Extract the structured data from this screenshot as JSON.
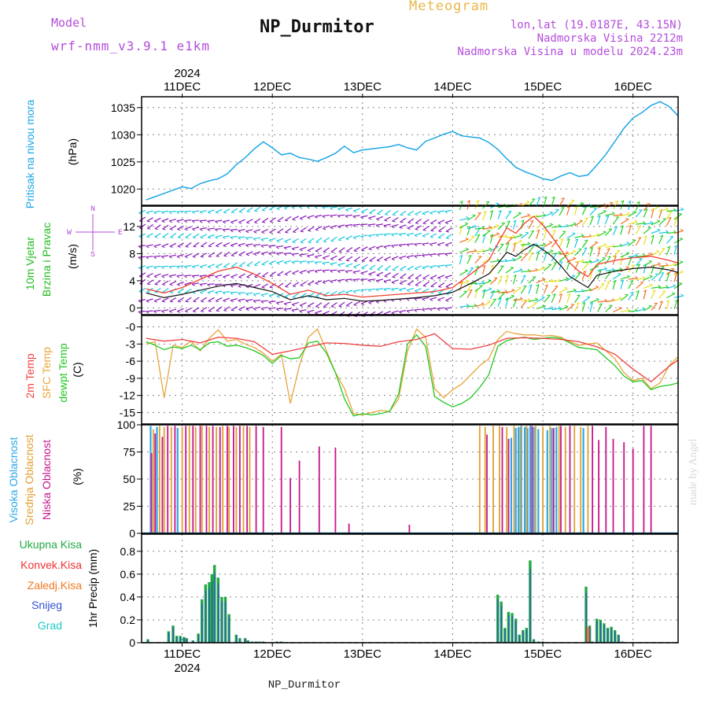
{
  "header": {
    "model_label": "Model",
    "model_name": "wrf-nmm_v3.9.1 e1km",
    "station": "NP_Durmitor",
    "product": "Meteogram",
    "coords": "lon,lat (19.0187E, 43.15N)",
    "elevation": "Nadmorska Visina 2212m",
    "model_elevation": "Nadmorska Visina u modelu 2024.23m",
    "footer_station": "NP_Durmitor",
    "watermark": "made by Angel"
  },
  "colors": {
    "pressure": "#1ca7e6",
    "temp2m": "#f04040",
    "sfc_temp": "#e8a53a",
    "dewpt": "#20c820",
    "high_cloud": "#2da8e8",
    "mid_cloud": "#e0a030",
    "low_cloud": "#c8158c",
    "total_precip": "#22aa44",
    "conv_precip": "#f03030",
    "frozen_precip": "#f07820",
    "snow": "#3050d0",
    "hail": "#20c8c8",
    "wind_speed": "#111111",
    "wind_gust": "#f04030",
    "wind_low": "#8a1ab8",
    "wind_mid": "#18c8e0",
    "wind_high": "#20d020",
    "wind_top": "#f07020"
  },
  "chart_data": [
    {
      "type": "line",
      "panel": "pressure",
      "ylabel": [
        "Pritisak na nivou mora",
        "(hPa)"
      ],
      "xticks": [
        "11DEC",
        "12DEC",
        "13DEC",
        "14DEC",
        "15DEC",
        "16DEC"
      ],
      "year": "2024",
      "ylim": [
        1017,
        1037
      ],
      "yticks": [
        1020,
        1025,
        1030,
        1035
      ],
      "grid": true,
      "series": [
        {
          "key": "pressure",
          "x": [
            10.6,
            10.7,
            10.8,
            10.9,
            11.0,
            11.1,
            11.2,
            11.3,
            11.4,
            11.5,
            11.6,
            11.7,
            11.8,
            11.9,
            12.0,
            12.1,
            12.2,
            12.3,
            12.4,
            12.5,
            12.6,
            12.7,
            12.8,
            12.9,
            13.0,
            13.1,
            13.2,
            13.3,
            13.4,
            13.5,
            13.6,
            13.7,
            13.8,
            13.9,
            14.0,
            14.1,
            14.2,
            14.3,
            14.4,
            14.5,
            14.6,
            14.7,
            14.8,
            14.9,
            15.0,
            15.1,
            15.2,
            15.3,
            15.4,
            15.5,
            15.6,
            15.7,
            15.8,
            15.9,
            16.0,
            16.1,
            16.2,
            16.3,
            16.4,
            16.5
          ],
          "values": [
            1018,
            1018.6,
            1019.2,
            1019.8,
            1020.4,
            1020.1,
            1021,
            1021.5,
            1021.9,
            1022.8,
            1024.5,
            1025.8,
            1027.4,
            1028.7,
            1027.6,
            1026.3,
            1026.6,
            1025.8,
            1025.5,
            1025.1,
            1025.8,
            1026.6,
            1027.9,
            1026.7,
            1027.2,
            1027.4,
            1027.6,
            1027.8,
            1028.2,
            1027.6,
            1027.2,
            1028.8,
            1029.4,
            1030.1,
            1030.6,
            1029.8,
            1029.6,
            1029.4,
            1028.6,
            1027.3,
            1025.6,
            1024.0,
            1023.2,
            1022.6,
            1021.9,
            1021.6,
            1022.4,
            1023.0,
            1022.3,
            1022.6,
            1024.4,
            1026.4,
            1028.8,
            1031.2,
            1033.1,
            1034.1,
            1035.4,
            1036.1,
            1035.2,
            1033.5
          ]
        }
      ]
    },
    {
      "type": "line",
      "panel": "wind",
      "ylabel": [
        "10m Vjetar",
        "Brzina i Pravac",
        "(m/s)"
      ],
      "compass": [
        "N",
        "E",
        "S",
        "W"
      ],
      "ylim": [
        -1,
        15
      ],
      "yticks": [
        0,
        4,
        8,
        12
      ],
      "grid": true,
      "series": [
        {
          "key": "wind_speed",
          "x": [
            10.6,
            10.8,
            11.0,
            11.2,
            11.4,
            11.6,
            11.8,
            12.0,
            12.2,
            12.4,
            12.6,
            12.8,
            13.0,
            13.2,
            13.4,
            13.6,
            13.8,
            14.0,
            14.2,
            14.4,
            14.5,
            14.6,
            14.7,
            14.8,
            14.9,
            15.0,
            15.1,
            15.2,
            15.3,
            15.4,
            15.5,
            15.6,
            15.8,
            16.0,
            16.2,
            16.4,
            16.5
          ],
          "values": [
            2.2,
            1.5,
            2.0,
            2.6,
            3.2,
            3.6,
            3.0,
            2.4,
            1.2,
            1.8,
            1.2,
            1.4,
            1.0,
            1.1,
            1.3,
            1.5,
            1.8,
            2.3,
            3.6,
            5.0,
            6.5,
            8.2,
            7.6,
            8.6,
            9.4,
            8.6,
            7.6,
            6.2,
            4.6,
            3.8,
            3.0,
            4.8,
            5.4,
            5.8,
            6.0,
            5.6,
            5.2
          ]
        },
        {
          "key": "wind_gust",
          "x": [
            10.6,
            10.8,
            11.0,
            11.2,
            11.4,
            11.6,
            11.8,
            12.0,
            12.2,
            12.4,
            12.6,
            12.8,
            13.0,
            13.2,
            13.4,
            13.6,
            13.8,
            14.0,
            14.2,
            14.4,
            14.5,
            14.6,
            14.7,
            14.8,
            14.9,
            15.0,
            15.1,
            15.2,
            15.3,
            15.4,
            15.5,
            15.6,
            15.8,
            16.0,
            16.2,
            16.4,
            16.5
          ],
          "values": [
            2.8,
            2.2,
            3.0,
            4.2,
            5.4,
            6.0,
            5.0,
            3.6,
            2.0,
            2.6,
            1.8,
            2.0,
            1.6,
            1.8,
            2.0,
            2.2,
            2.4,
            3.0,
            5.0,
            7.0,
            9.5,
            11.8,
            11.0,
            12.5,
            13.5,
            12.2,
            10.5,
            8.6,
            6.6,
            5.4,
            4.6,
            6.4,
            7.0,
            7.4,
            7.6,
            7.0,
            6.6
          ]
        }
      ]
    },
    {
      "type": "line",
      "panel": "temperature",
      "ylabel": [
        "2m Temp",
        "SFC Temp",
        "dewpt Temp",
        "(C)"
      ],
      "ylim": [
        -17,
        2
      ],
      "yticks": [
        0,
        -3,
        -6,
        -9,
        -12,
        -15
      ],
      "tick_labels": [
        "-0",
        "-3",
        "-6",
        "-9",
        "-12",
        "-15"
      ],
      "grid": true,
      "series": [
        {
          "key": "temp2m",
          "x": [
            10.6,
            10.8,
            11.0,
            11.2,
            11.4,
            11.6,
            11.8,
            12.0,
            12.2,
            12.4,
            12.6,
            12.8,
            13.0,
            13.2,
            13.4,
            13.6,
            13.8,
            14.0,
            14.2,
            14.4,
            14.6,
            14.8,
            15.0,
            15.2,
            15.4,
            15.6,
            15.8,
            16.0,
            16.2,
            16.4,
            16.5
          ],
          "values": [
            -2.0,
            -2.5,
            -2.2,
            -2.8,
            -1.8,
            -2.0,
            -2.6,
            -4.8,
            -4.2,
            -3.5,
            -2.8,
            -2.9,
            -3.2,
            -3.4,
            -2.6,
            -2.2,
            -1.2,
            -3.8,
            -3.9,
            -3.2,
            -2.0,
            -1.9,
            -2.0,
            -2.2,
            -2.6,
            -3.5,
            -4.8,
            -7.4,
            -9.6,
            -6.9,
            -5.8
          ]
        },
        {
          "key": "sfc_temp",
          "x": [
            10.6,
            10.7,
            10.8,
            10.9,
            11.0,
            11.1,
            11.2,
            11.3,
            11.4,
            11.5,
            11.6,
            11.7,
            11.8,
            11.9,
            12.0,
            12.1,
            12.2,
            12.3,
            12.4,
            12.5,
            12.6,
            12.7,
            12.8,
            12.9,
            13.0,
            13.1,
            13.2,
            13.3,
            13.4,
            13.5,
            13.6,
            13.7,
            13.8,
            13.9,
            14.0,
            14.1,
            14.2,
            14.3,
            14.4,
            14.5,
            14.6,
            14.7,
            14.8,
            14.9,
            15.0,
            15.1,
            15.2,
            15.3,
            15.4,
            15.5,
            15.6,
            15.7,
            15.8,
            15.9,
            16.0,
            16.1,
            16.2,
            16.3,
            16.4,
            16.5
          ],
          "values": [
            -3.0,
            -2.6,
            -12.4,
            -3.2,
            -3.6,
            -2.5,
            -4.2,
            -2.0,
            -0.5,
            -2.5,
            -2.2,
            -3.0,
            -3.6,
            -4.6,
            -6.0,
            -4.8,
            -13.4,
            -6.8,
            -1.8,
            -0.4,
            -4.2,
            -8.0,
            -10.8,
            -15.2,
            -15.4,
            -15.0,
            -14.6,
            -14.8,
            -12.6,
            -4.2,
            -0.4,
            -1.8,
            -10.8,
            -12.4,
            -11.0,
            -10.0,
            -8.4,
            -6.8,
            -5.6,
            -2.2,
            -0.8,
            -1.2,
            -1.4,
            -1.4,
            -1.6,
            -1.5,
            -1.8,
            -2.6,
            -3.2,
            -3.0,
            -2.8,
            -4.2,
            -5.6,
            -8.0,
            -9.4,
            -9.0,
            -10.8,
            -9.8,
            -6.8,
            -5.2
          ]
        },
        {
          "key": "dewpt",
          "x": [
            10.6,
            10.7,
            10.8,
            10.9,
            11.0,
            11.1,
            11.2,
            11.3,
            11.4,
            11.5,
            11.6,
            11.7,
            11.8,
            11.9,
            12.0,
            12.1,
            12.2,
            12.3,
            12.4,
            12.5,
            12.6,
            12.7,
            12.8,
            12.9,
            13.0,
            13.1,
            13.2,
            13.3,
            13.4,
            13.5,
            13.6,
            13.7,
            13.8,
            13.9,
            14.0,
            14.1,
            14.2,
            14.3,
            14.4,
            14.5,
            14.6,
            14.7,
            14.8,
            14.9,
            15.0,
            15.1,
            15.2,
            15.3,
            15.4,
            15.5,
            15.6,
            15.7,
            15.8,
            15.9,
            16.0,
            16.1,
            16.2,
            16.3,
            16.4,
            16.5
          ],
          "values": [
            -2.6,
            -3.2,
            -4.0,
            -3.5,
            -3.8,
            -3.2,
            -4.0,
            -2.8,
            -2.6,
            -3.4,
            -3.2,
            -3.6,
            -4.2,
            -5.0,
            -6.4,
            -5.0,
            -5.6,
            -5.4,
            -2.8,
            -2.5,
            -4.6,
            -8.0,
            -12.6,
            -15.6,
            -15.2,
            -15.4,
            -15.2,
            -14.8,
            -11.8,
            -3.0,
            -1.4,
            -3.4,
            -12.2,
            -13.2,
            -14.0,
            -13.4,
            -12.4,
            -10.6,
            -8.4,
            -3.4,
            -2.4,
            -2.0,
            -1.8,
            -2.2,
            -2.0,
            -1.8,
            -2.0,
            -2.8,
            -3.6,
            -3.8,
            -4.0,
            -5.4,
            -6.8,
            -8.6,
            -9.6,
            -9.4,
            -11.0,
            -10.4,
            -10.2,
            -9.8
          ]
        }
      ]
    },
    {
      "type": "bar",
      "panel": "cloud",
      "ylabel": [
        "Visoka Oblacnost",
        "Srednja Oblacnost",
        "Niska Oblacnost",
        "(%)"
      ],
      "ylim": [
        0,
        100
      ],
      "yticks": [
        0,
        25,
        50,
        75,
        100
      ],
      "grid": true,
      "series": [
        {
          "key": "high_cloud",
          "x": [
            10.65,
            10.72,
            10.95,
            14.65,
            14.7,
            14.73,
            14.76,
            14.8,
            14.83,
            14.86,
            14.9,
            14.95,
            15.05,
            15.1,
            15.15,
            15.45
          ],
          "values": [
            99,
            98,
            97,
            88,
            97,
            98,
            99,
            98,
            97,
            99,
            98,
            96,
            95,
            97,
            98,
            97
          ]
        },
        {
          "key": "mid_cloud",
          "x": [
            10.68,
            10.75,
            10.8,
            10.88,
            11.0,
            11.08,
            11.15,
            11.22,
            11.3,
            11.38,
            11.45,
            11.52,
            11.6,
            11.68,
            11.75,
            14.3,
            14.36,
            14.45,
            14.52,
            14.6,
            14.68,
            14.75,
            14.82,
            14.92,
            15.0,
            15.08,
            15.18,
            15.25,
            15.35,
            15.42,
            15.5
          ],
          "values": [
            96,
            99,
            98,
            98,
            98,
            99,
            98,
            99,
            98,
            98,
            99,
            98,
            98,
            99,
            98,
            99,
            98,
            99,
            99,
            98,
            99,
            98,
            99,
            99,
            98,
            99,
            99,
            98,
            99,
            98,
            99
          ]
        },
        {
          "key": "low_cloud",
          "x": [
            10.66,
            10.7,
            10.78,
            10.84,
            10.92,
            11.04,
            11.12,
            11.2,
            11.27,
            11.34,
            11.42,
            11.5,
            11.57,
            11.64,
            11.72,
            11.82,
            11.9,
            12.1,
            12.2,
            12.3,
            12.52,
            12.7,
            12.85,
            13.52,
            14.38,
            14.55,
            14.62,
            14.88,
            15.12,
            15.2,
            15.3,
            15.55,
            15.62,
            15.7,
            15.78,
            15.9,
            16.0,
            16.12,
            16.2
          ],
          "values": [
            74,
            92,
            89,
            99,
            99,
            99,
            99,
            99,
            99,
            99,
            98,
            99,
            99,
            99,
            99,
            99,
            98,
            98,
            51,
            67,
            80,
            79,
            9,
            8,
            91,
            98,
            87,
            99,
            97,
            99,
            99,
            99,
            86,
            98,
            87,
            84,
            78,
            99,
            99
          ]
        }
      ]
    },
    {
      "type": "bar",
      "panel": "precip",
      "ylabel": [
        "Ukupna Kisa",
        "Konvek.Kisa",
        "Zaledj.Kisa",
        "Snijeg",
        "Grad",
        "1hr Precip (mm)"
      ],
      "ylim": [
        0,
        0.95
      ],
      "yticks": [
        0,
        0.2,
        0.4,
        0.6,
        0.8
      ],
      "grid": true,
      "series": [
        {
          "key": "total_precip",
          "x": [
            10.62,
            10.85,
            10.9,
            10.94,
            10.98,
            11.02,
            11.05,
            11.12,
            11.18,
            11.22,
            11.26,
            11.3,
            11.33,
            11.36,
            11.4,
            11.44,
            11.48,
            11.52,
            11.6,
            11.64,
            11.7,
            11.73,
            11.78,
            11.82,
            11.86,
            11.9,
            12.05,
            12.1,
            14.5,
            14.54,
            14.58,
            14.62,
            14.66,
            14.7,
            14.74,
            14.78,
            14.82,
            14.86,
            14.9,
            14.95,
            15.0,
            15.48,
            15.52,
            15.55,
            15.6,
            15.64,
            15.68,
            15.72,
            15.76,
            15.8,
            15.84,
            15.88
          ],
          "values": [
            0.03,
            0.1,
            0.15,
            0.06,
            0.06,
            0.05,
            0.04,
            0.02,
            0.08,
            0.38,
            0.51,
            0.53,
            0.6,
            0.68,
            0.57,
            0.4,
            0.4,
            0.25,
            0.07,
            0.04,
            0.04,
            0.02,
            0.01,
            0.01,
            0.01,
            0.01,
            0.01,
            0.01,
            0.42,
            0.36,
            0.13,
            0.27,
            0.26,
            0.21,
            0.07,
            0.11,
            0.13,
            0.72,
            0.03,
            0.01,
            0.01,
            0.49,
            0.15,
            0.01,
            0.21,
            0.2,
            0.17,
            0.13,
            0.14,
            0.11,
            0.07,
            0.01
          ]
        },
        {
          "key": "conv_precip",
          "x": [
            15.5
          ],
          "values": [
            0.14
          ]
        }
      ]
    }
  ]
}
